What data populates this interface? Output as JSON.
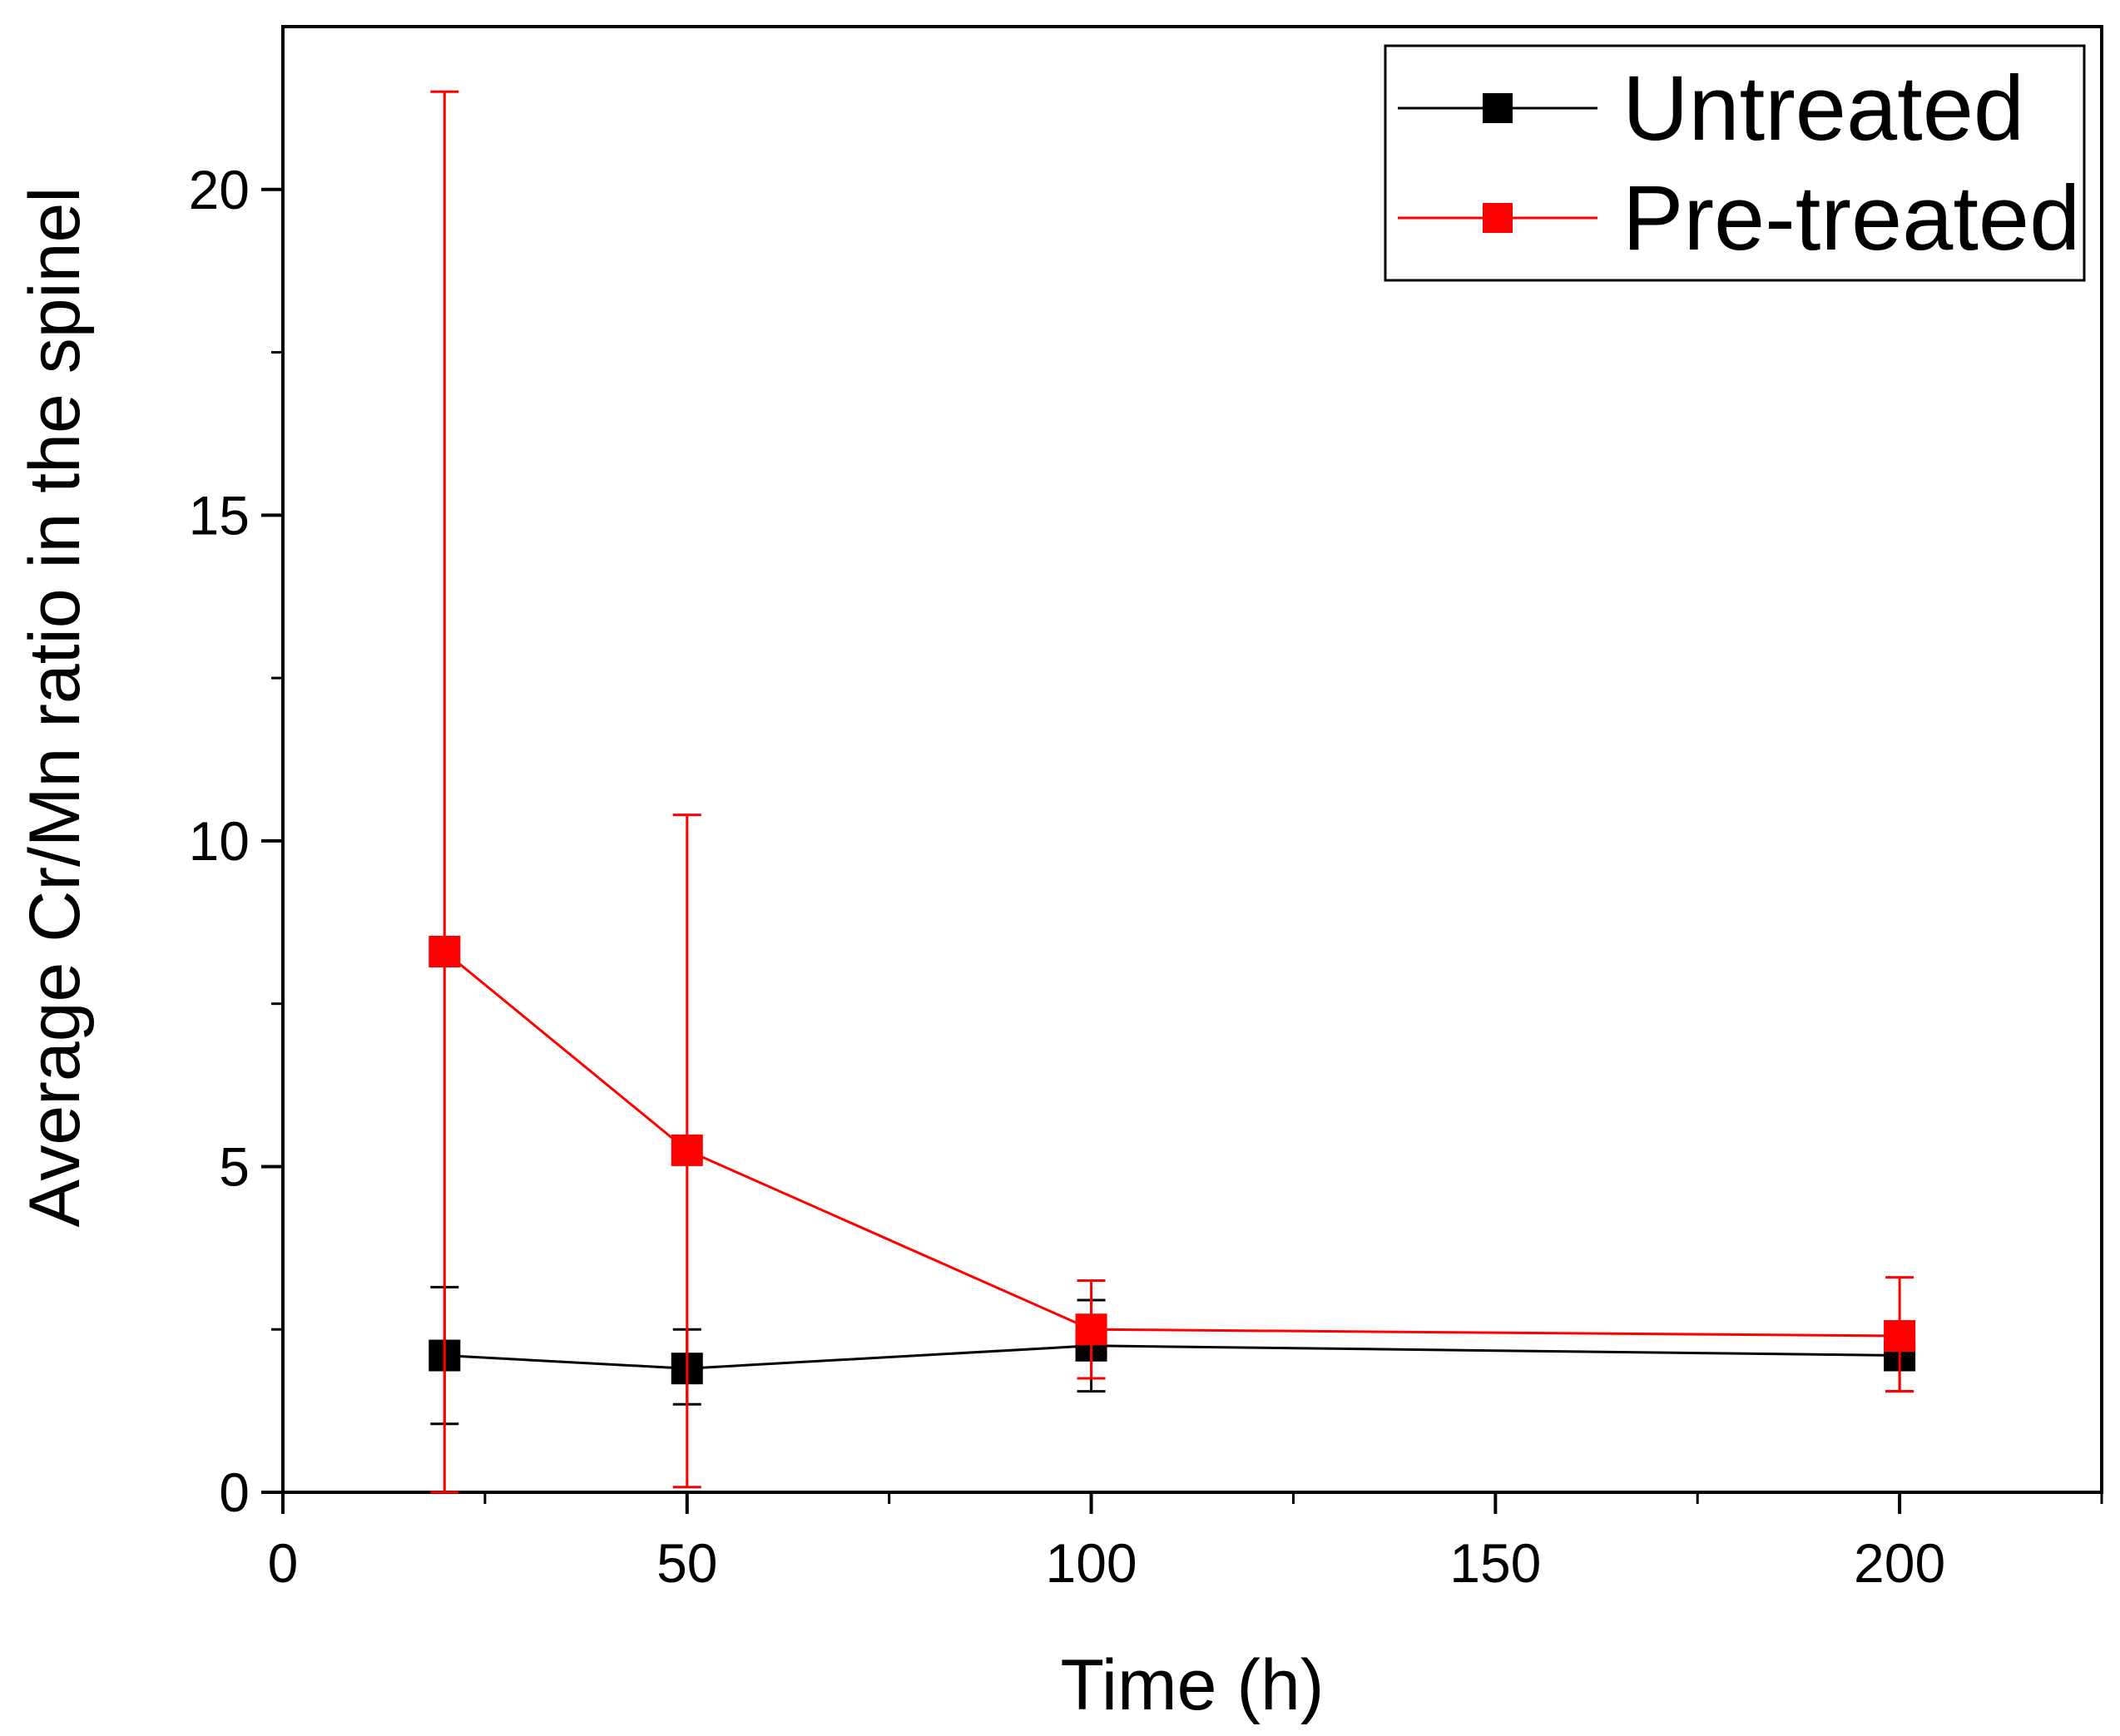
{
  "chart_data": {
    "type": "line",
    "title": "",
    "xlabel": "Time (h)",
    "ylabel": "Average Cr/Mn ratio in the spinel",
    "xlim": [
      0,
      225
    ],
    "ylim": [
      0,
      22.5
    ],
    "xticks": [
      0,
      50,
      100,
      150,
      200
    ],
    "xtick_labels": [
      "0",
      "50",
      "100",
      "150",
      "200"
    ],
    "xminor": [
      25,
      75,
      125,
      175,
      225
    ],
    "yticks": [
      0,
      5,
      10,
      15,
      20
    ],
    "ytick_labels": [
      "0",
      "5",
      "10",
      "15",
      "20"
    ],
    "yminor": [
      2.5,
      7.5,
      12.5,
      17.5
    ],
    "grid": false,
    "legend_position": "top-right",
    "series": [
      {
        "name": "Untreated",
        "color": "#000000",
        "x": [
          20,
          50,
          100,
          200
        ],
        "y": [
          2.1,
          1.9,
          2.25,
          2.1
        ],
        "err_low": [
          1.05,
          1.35,
          1.55,
          1.55
        ],
        "err_high": [
          3.15,
          2.5,
          2.95,
          2.3
        ]
      },
      {
        "name": "Pre-treated",
        "color": "#ff0000",
        "x": [
          20,
          50,
          100,
          200
        ],
        "y": [
          8.3,
          5.25,
          2.5,
          2.4
        ],
        "err_low": [
          0.0,
          0.08,
          1.75,
          1.55
        ],
        "err_high": [
          21.5,
          10.4,
          3.25,
          3.3
        ]
      }
    ]
  }
}
